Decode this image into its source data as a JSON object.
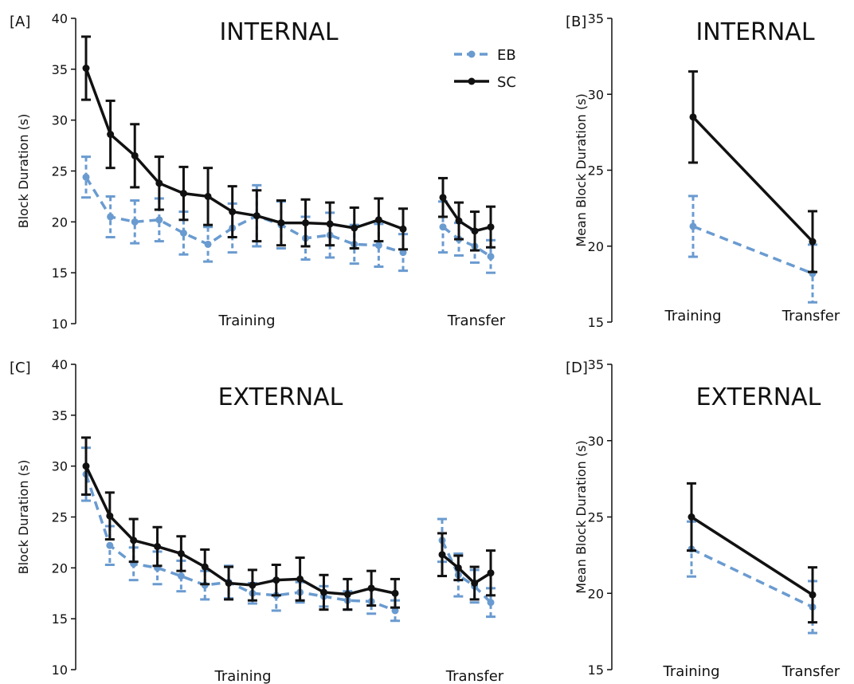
{
  "chart_data": [
    {
      "panel": "[A]",
      "type": "line",
      "title": "INTERNAL",
      "ylabel": "Block Duration (s)",
      "ylim": [
        10,
        40
      ],
      "yticks": [
        10,
        15,
        20,
        25,
        30,
        35,
        40
      ],
      "categories": [
        "Training",
        "Transfer"
      ],
      "legend": "top-center",
      "series": [
        {
          "name": "EB",
          "color": "#6a9bd0",
          "style": "dashed",
          "segments": [
            {
              "values": [
                24.4,
                20.5,
                20.0,
                20.2,
                18.9,
                17.8,
                19.4,
                20.6,
                19.7,
                18.4,
                18.7,
                17.8,
                17.7,
                17.0
              ],
              "errors": [
                2.0,
                2.0,
                2.1,
                2.1,
                2.1,
                1.7,
                2.4,
                3.0,
                2.3,
                2.1,
                2.2,
                1.9,
                2.1,
                1.8
              ]
            },
            {
              "values": [
                19.5,
                18.3,
                17.6,
                16.6
              ],
              "errors": [
                2.5,
                1.6,
                1.6,
                1.6
              ]
            }
          ]
        },
        {
          "name": "SC",
          "color": "#111111",
          "style": "solid",
          "segments": [
            {
              "values": [
                35.1,
                28.6,
                26.5,
                23.8,
                22.8,
                22.5,
                21.0,
                20.6,
                19.9,
                19.9,
                19.8,
                19.4,
                20.2,
                19.3
              ],
              "errors": [
                3.1,
                3.3,
                3.1,
                2.6,
                2.6,
                2.8,
                2.5,
                2.5,
                2.2,
                2.3,
                2.1,
                2.0,
                2.1,
                2.0
              ]
            },
            {
              "values": [
                22.4,
                20.1,
                19.1,
                19.5
              ],
              "errors": [
                1.9,
                1.8,
                1.9,
                2.0
              ]
            }
          ]
        }
      ]
    },
    {
      "panel": "[B]",
      "type": "line",
      "title": "INTERNAL",
      "ylabel": "Mean Block Duration (s)",
      "ylim": [
        15,
        35
      ],
      "yticks": [
        15,
        20,
        25,
        30,
        35
      ],
      "categories": [
        "Training",
        "Transfer"
      ],
      "series": [
        {
          "name": "EB",
          "color": "#6a9bd0",
          "style": "dashed",
          "values": [
            21.3,
            18.2
          ],
          "errors": [
            2.0,
            1.9
          ]
        },
        {
          "name": "SC",
          "color": "#111111",
          "style": "solid",
          "values": [
            28.5,
            20.3
          ],
          "errors": [
            3.0,
            2.0
          ]
        }
      ]
    },
    {
      "panel": "[C]",
      "type": "line",
      "title": "EXTERNAL",
      "ylabel": "Block Duration (s)",
      "ylim": [
        10,
        40
      ],
      "yticks": [
        10,
        15,
        20,
        25,
        30,
        35,
        40
      ],
      "categories": [
        "Training",
        "Transfer"
      ],
      "series": [
        {
          "name": "EB",
          "color": "#6a9bd0",
          "style": "dashed",
          "segments": [
            {
              "values": [
                29.2,
                22.2,
                20.4,
                20.0,
                19.2,
                18.3,
                18.6,
                17.5,
                17.3,
                17.6,
                17.2,
                16.8,
                16.7,
                15.8
              ],
              "errors": [
                2.6,
                1.9,
                1.6,
                1.6,
                1.5,
                1.4,
                1.6,
                1.0,
                1.5,
                1.0,
                1.0,
                0.9,
                1.2,
                1.0
              ]
            },
            {
              "values": [
                22.7,
                19.3,
                18.2,
                16.6
              ],
              "errors": [
                2.1,
                2.1,
                1.6,
                1.4
              ]
            }
          ]
        },
        {
          "name": "SC",
          "color": "#111111",
          "style": "solid",
          "segments": [
            {
              "values": [
                30.0,
                25.1,
                22.7,
                22.1,
                21.4,
                20.1,
                18.5,
                18.3,
                18.8,
                18.9,
                17.6,
                17.4,
                18.0,
                17.5
              ],
              "errors": [
                2.8,
                2.3,
                2.1,
                1.9,
                1.7,
                1.7,
                1.6,
                1.5,
                1.5,
                2.1,
                1.7,
                1.5,
                1.7,
                1.4
              ]
            },
            {
              "values": [
                21.3,
                20.0,
                18.5,
                19.5
              ],
              "errors": [
                2.1,
                1.2,
                1.6,
                2.2
              ]
            }
          ]
        }
      ]
    },
    {
      "panel": "[D]",
      "type": "line",
      "title": "EXTERNAL",
      "ylabel": "Mean Block Duration (s)",
      "ylim": [
        15,
        35
      ],
      "yticks": [
        15,
        20,
        25,
        30,
        35
      ],
      "categories": [
        "Training",
        "Transfer"
      ],
      "series": [
        {
          "name": "EB",
          "color": "#6a9bd0",
          "style": "dashed",
          "values": [
            22.9,
            19.1
          ],
          "errors": [
            1.8,
            1.7
          ]
        },
        {
          "name": "SC",
          "color": "#111111",
          "style": "solid",
          "values": [
            25.0,
            19.9
          ],
          "errors": [
            2.2,
            1.8
          ]
        }
      ]
    }
  ]
}
